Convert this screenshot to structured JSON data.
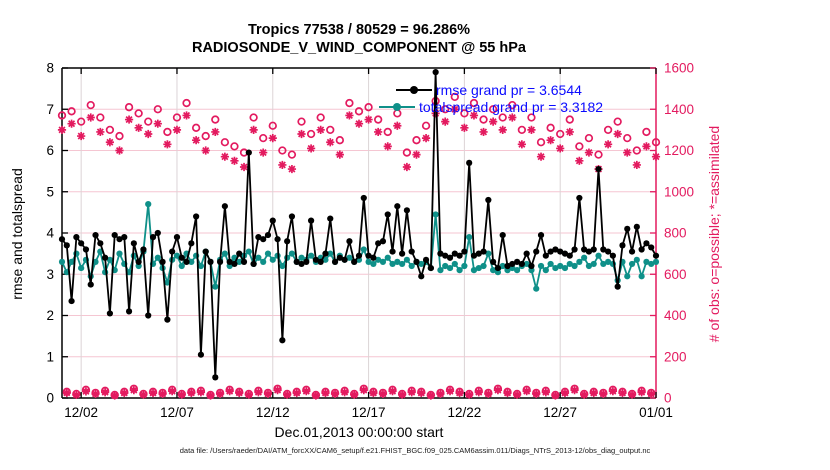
{
  "figure": {
    "title_line1": "Tropics 77538 / 80529 = 96.286%",
    "title_line2": "RADIOSONDE_V_WIND_COMPONENT @ 55 hPa"
  },
  "legend": {
    "text_color": "#0a0aff",
    "entries": [
      {
        "label": "rmse grand pr = 3.6544",
        "color": "#000000"
      },
      {
        "label": "totalspread grand pr = 3.3182",
        "color": "#0f9089"
      }
    ]
  },
  "caption": "data file: /Users/raeder/DAI/ATM_forcXX/CAM6_setup/f.e21.FHIST_BGC.f09_025.CAM6assim.011/Diags_NTrS_2013-12/obs_diag_output.nc",
  "colors": {
    "obs_magenta": "#e31a5f",
    "spread_teal": "#0f9089",
    "rmse_black": "#000000",
    "grid_horizontal": "#f5c6d2",
    "grid_vertical": "#dcd4d6",
    "axis_black": "#000000"
  },
  "chart_data": {
    "type": "line",
    "title": "Tropics 77538 / 80529 = 96.286%",
    "subtitle": "RADIOSONDE_V_WIND_COMPONENT @ 55 hPa",
    "xlabel": "Dec.01,2013 00:00:00 start",
    "ylabel_left": "rmse and totalspread",
    "ylabel_right": "# of obs: o=possible; *=assimilated",
    "grid": true,
    "xlim_days": [
      0,
      31
    ],
    "ylim_left": [
      0,
      8
    ],
    "ylim_right": [
      0,
      1600
    ],
    "x_ticks": {
      "days": [
        1,
        6,
        11,
        16,
        21,
        26,
        31
      ],
      "labels": [
        "12/02",
        "12/07",
        "12/12",
        "12/17",
        "12/22",
        "12/27",
        "01/01"
      ]
    },
    "y_ticks_left": [
      "0",
      "1",
      "2",
      "3",
      "4",
      "5",
      "6",
      "7",
      "8"
    ],
    "y_ticks_right": [
      "0",
      "200",
      "400",
      "600",
      "800",
      "1000",
      "1200",
      "1400",
      "1600"
    ],
    "time_start_day": 0,
    "time_step_day": 0.25,
    "series": [
      {
        "name": "rmse",
        "grand_pr": 3.6544,
        "axis": "left",
        "color": "#000000",
        "marker": "dot",
        "line": true,
        "values": [
          3.85,
          3.7,
          2.35,
          3.9,
          3.75,
          3.6,
          2.75,
          3.95,
          3.75,
          3.4,
          2.05,
          3.95,
          3.85,
          3.9,
          2.1,
          3.75,
          3.3,
          3.6,
          2.0,
          3.9,
          4.0,
          3.3,
          1.9,
          3.55,
          3.9,
          3.4,
          3.3,
          3.75,
          4.4,
          1.05,
          3.55,
          3.3,
          0.5,
          3.3,
          4.65,
          3.3,
          3.25,
          3.5,
          3.3,
          5.95,
          3.25,
          3.9,
          3.85,
          3.95,
          4.3,
          3.85,
          1.4,
          3.8,
          4.4,
          3.3,
          3.25,
          3.3,
          4.3,
          3.35,
          3.3,
          3.5,
          4.35,
          3.3,
          3.4,
          3.35,
          3.8,
          3.3,
          3.45,
          4.85,
          3.45,
          3.4,
          3.75,
          3.8,
          4.45,
          3.55,
          4.65,
          3.5,
          4.55,
          3.55,
          3.3,
          2.95,
          3.35,
          3.15,
          7.9,
          3.5,
          3.45,
          3.4,
          3.5,
          3.45,
          3.55,
          5.7,
          3.45,
          3.5,
          3.55,
          4.8,
          3.3,
          3.15,
          3.95,
          3.2,
          3.25,
          3.3,
          3.25,
          3.5,
          3.2,
          3.55,
          3.95,
          3.45,
          3.55,
          3.6,
          3.55,
          3.5,
          3.45,
          3.6,
          4.85,
          3.6,
          3.55,
          3.6,
          5.55,
          3.6,
          3.55,
          3.45,
          2.7,
          3.7,
          4.1,
          3.55,
          4.15,
          3.6,
          3.75,
          3.65,
          3.45
        ]
      },
      {
        "name": "totalspread",
        "grand_pr": 3.3182,
        "axis": "left",
        "color": "#0f9089",
        "marker": "dot",
        "line": true,
        "values": [
          3.3,
          3.05,
          3.3,
          3.5,
          3.15,
          3.35,
          2.95,
          3.3,
          3.55,
          3.05,
          3.35,
          3.1,
          3.5,
          3.25,
          3.05,
          3.45,
          3.2,
          3.55,
          4.7,
          3.25,
          3.4,
          3.15,
          2.8,
          3.35,
          3.45,
          3.2,
          3.5,
          3.3,
          3.45,
          3.2,
          3.55,
          3.3,
          2.7,
          3.35,
          3.5,
          3.2,
          3.4,
          3.3,
          3.45,
          3.55,
          3.25,
          3.4,
          3.3,
          3.5,
          3.35,
          3.45,
          3.2,
          3.4,
          3.5,
          3.3,
          3.4,
          3.35,
          3.45,
          3.3,
          3.4,
          3.35,
          3.5,
          3.3,
          3.45,
          3.35,
          3.4,
          3.3,
          3.35,
          3.6,
          3.3,
          3.25,
          3.35,
          3.3,
          3.4,
          3.25,
          3.3,
          3.25,
          3.35,
          3.2,
          3.3,
          3.25,
          3.3,
          3.15,
          4.45,
          3.1,
          3.2,
          3.15,
          3.25,
          3.1,
          3.2,
          3.9,
          3.1,
          3.15,
          3.2,
          3.5,
          3.1,
          3.05,
          3.2,
          3.1,
          3.15,
          3.1,
          3.2,
          3.25,
          3.1,
          2.65,
          3.2,
          3.1,
          3.25,
          3.15,
          3.2,
          3.15,
          3.25,
          3.2,
          3.3,
          3.4,
          3.2,
          3.25,
          3.45,
          3.25,
          3.3,
          3.25,
          2.85,
          3.3,
          2.95,
          3.25,
          3.35,
          2.95,
          3.3,
          3.25,
          3.3
        ]
      },
      {
        "name": "possible",
        "axis": "right",
        "color": "#e31a5f",
        "marker": "circle",
        "line": false,
        "values": [
          1370,
          30,
          1390,
          20,
          1340,
          40,
          1420,
          25,
          1360,
          35,
          1300,
          15,
          1270,
          30,
          1410,
          45,
          1380,
          20,
          1340,
          30,
          1400,
          25,
          1290,
          40,
          1360,
          20,
          1430,
          30,
          1310,
          35,
          1270,
          15,
          1350,
          25,
          1240,
          40,
          1220,
          30,
          1190,
          20,
          1360,
          35,
          1260,
          25,
          1320,
          45,
          1200,
          20,
          1180,
          30,
          1340,
          40,
          1280,
          15,
          1360,
          30,
          1300,
          25,
          1250,
          35,
          1430,
          20,
          1390,
          45,
          1410,
          30,
          1350,
          25,
          1290,
          40,
          1380,
          20,
          1190,
          35,
          1250,
          30,
          1320,
          15,
          1440,
          25,
          1400,
          40,
          1460,
          30,
          1380,
          20,
          1430,
          35,
          1350,
          25,
          1400,
          45,
          1360,
          30,
          1420,
          20,
          1300,
          40,
          1360,
          25,
          1240,
          35,
          1310,
          15,
          1280,
          30,
          1350,
          45,
          1220,
          20,
          1260,
          30,
          1180,
          25,
          1300,
          40,
          1340,
          30,
          1260,
          20,
          1200,
          35,
          1290,
          25,
          1240
        ]
      },
      {
        "name": "assimilated",
        "axis": "right",
        "color": "#e31a5f",
        "marker": "asterisk",
        "line": false,
        "values": [
          1300,
          25,
          1330,
          15,
          1270,
          32,
          1360,
          20,
          1290,
          28,
          1240,
          12,
          1200,
          24,
          1350,
          38,
          1310,
          16,
          1280,
          24,
          1330,
          20,
          1230,
          33,
          1300,
          16,
          1370,
          25,
          1250,
          28,
          1200,
          12,
          1290,
          20,
          1170,
          33,
          1150,
          25,
          1120,
          16,
          1300,
          28,
          1190,
          20,
          1260,
          38,
          1130,
          16,
          1110,
          24,
          1280,
          33,
          1210,
          12,
          1300,
          24,
          1240,
          20,
          1180,
          28,
          1370,
          16,
          1330,
          38,
          1350,
          24,
          1290,
          20,
          1220,
          33,
          1320,
          16,
          1120,
          28,
          1180,
          24,
          1260,
          12,
          1380,
          20,
          1340,
          33,
          1400,
          24,
          1310,
          16,
          1370,
          28,
          1290,
          20,
          1340,
          38,
          1300,
          24,
          1360,
          16,
          1230,
          33,
          1300,
          20,
          1170,
          28,
          1250,
          12,
          1210,
          24,
          1290,
          38,
          1150,
          16,
          1190,
          24,
          1110,
          20,
          1230,
          33,
          1280,
          24,
          1190,
          16,
          1130,
          28,
          1220,
          20,
          1170
        ]
      }
    ]
  }
}
